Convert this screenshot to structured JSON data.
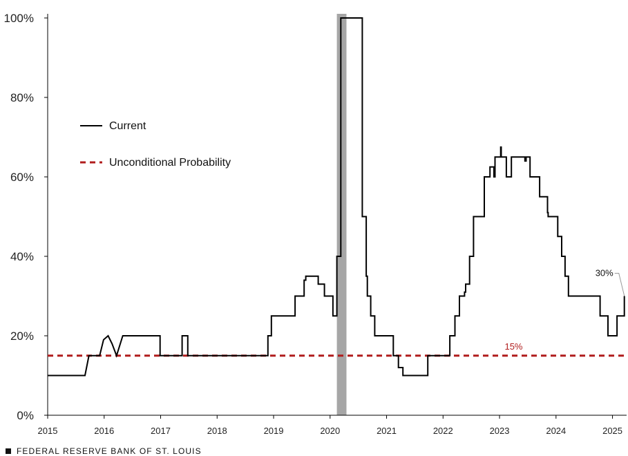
{
  "footer": {
    "text": "FEDERAL RESERVE BANK OF ST. LOUIS",
    "icon": "square-bullet-icon"
  },
  "chart_data": {
    "type": "line",
    "title": "",
    "xlabel": "",
    "ylabel": "",
    "xlim": [
      2015.0,
      2025.25
    ],
    "ylim": [
      0,
      100
    ],
    "x_ticks": [
      "2015",
      "2016",
      "2017",
      "2018",
      "2019",
      "2020",
      "2021",
      "2022",
      "2023",
      "2024",
      "2025"
    ],
    "y_ticks": [
      "0%",
      "20%",
      "40%",
      "60%",
      "80%",
      "100%"
    ],
    "grid": false,
    "legend": {
      "placement": "left",
      "entries": [
        "Current",
        "Unconditional Probability"
      ]
    },
    "recession_band": {
      "x_start": 2020.12,
      "x_end": 2020.29,
      "color": "#a6a6a6"
    },
    "series": [
      {
        "name": "Current",
        "color": "#000000",
        "style": "step",
        "points": [
          [
            2015.0,
            10
          ],
          [
            2015.66,
            10
          ],
          [
            2015.73,
            15
          ],
          [
            2015.92,
            15
          ],
          [
            2015.99,
            19
          ],
          [
            2016.07,
            20
          ],
          [
            2016.14,
            18
          ],
          [
            2016.22,
            15
          ],
          [
            2016.33,
            20
          ],
          [
            2016.99,
            20
          ],
          [
            2016.99,
            15
          ],
          [
            2017.38,
            15
          ],
          [
            2017.38,
            20
          ],
          [
            2017.48,
            20
          ],
          [
            2017.48,
            15
          ],
          [
            2018.9,
            15
          ],
          [
            2018.9,
            20
          ],
          [
            2018.96,
            20
          ],
          [
            2018.96,
            25
          ],
          [
            2019.38,
            25
          ],
          [
            2019.38,
            30
          ],
          [
            2019.54,
            30
          ],
          [
            2019.54,
            34
          ],
          [
            2019.57,
            34
          ],
          [
            2019.57,
            35
          ],
          [
            2019.79,
            35
          ],
          [
            2019.79,
            33
          ],
          [
            2019.9,
            33
          ],
          [
            2019.9,
            30
          ],
          [
            2020.05,
            30
          ],
          [
            2020.05,
            25
          ],
          [
            2020.12,
            25
          ],
          [
            2020.12,
            40
          ],
          [
            2020.19,
            40
          ],
          [
            2020.19,
            100
          ],
          [
            2020.57,
            100
          ],
          [
            2020.57,
            50
          ],
          [
            2020.64,
            50
          ],
          [
            2020.64,
            35
          ],
          [
            2020.66,
            35
          ],
          [
            2020.66,
            30
          ],
          [
            2020.72,
            30
          ],
          [
            2020.72,
            25
          ],
          [
            2020.79,
            25
          ],
          [
            2020.79,
            20
          ],
          [
            2021.12,
            20
          ],
          [
            2021.12,
            15
          ],
          [
            2021.21,
            15
          ],
          [
            2021.21,
            12
          ],
          [
            2021.29,
            12
          ],
          [
            2021.29,
            10
          ],
          [
            2021.73,
            10
          ],
          [
            2021.73,
            15
          ],
          [
            2022.12,
            15
          ],
          [
            2022.12,
            20
          ],
          [
            2022.21,
            20
          ],
          [
            2022.21,
            25
          ],
          [
            2022.29,
            25
          ],
          [
            2022.29,
            30
          ],
          [
            2022.38,
            30
          ],
          [
            2022.38,
            31
          ],
          [
            2022.4,
            31
          ],
          [
            2022.4,
            33
          ],
          [
            2022.47,
            33
          ],
          [
            2022.47,
            40
          ],
          [
            2022.54,
            40
          ],
          [
            2022.54,
            50
          ],
          [
            2022.73,
            50
          ],
          [
            2022.73,
            60
          ],
          [
            2022.83,
            60
          ],
          [
            2022.83,
            62.5
          ],
          [
            2022.9,
            62.5
          ],
          [
            2022.9,
            60
          ],
          [
            2022.92,
            60
          ],
          [
            2022.92,
            65
          ],
          [
            2023.02,
            65
          ],
          [
            2023.02,
            67.5
          ],
          [
            2023.03,
            67.5
          ],
          [
            2023.03,
            65
          ],
          [
            2023.12,
            65
          ],
          [
            2023.12,
            60
          ],
          [
            2023.21,
            60
          ],
          [
            2023.21,
            65
          ],
          [
            2023.45,
            65
          ],
          [
            2023.45,
            64
          ],
          [
            2023.47,
            64
          ],
          [
            2023.47,
            65
          ],
          [
            2023.54,
            65
          ],
          [
            2023.54,
            60
          ],
          [
            2023.71,
            60
          ],
          [
            2023.71,
            55
          ],
          [
            2023.85,
            55
          ],
          [
            2023.85,
            51
          ],
          [
            2023.86,
            51
          ],
          [
            2023.86,
            50
          ],
          [
            2024.03,
            50
          ],
          [
            2024.03,
            45
          ],
          [
            2024.1,
            45
          ],
          [
            2024.1,
            40
          ],
          [
            2024.16,
            40
          ],
          [
            2024.16,
            35
          ],
          [
            2024.22,
            35
          ],
          [
            2024.22,
            30
          ],
          [
            2024.78,
            30
          ],
          [
            2024.78,
            25
          ],
          [
            2024.92,
            25
          ],
          [
            2024.92,
            20
          ],
          [
            2025.08,
            20
          ],
          [
            2025.08,
            25
          ],
          [
            2025.21,
            25
          ],
          [
            2025.21,
            30
          ]
        ]
      },
      {
        "name": "Unconditional Probability",
        "color": "#b01c1c",
        "style": "dashed",
        "value": 15
      }
    ],
    "annotations": [
      {
        "text": "30%",
        "x": 2025.21,
        "y": 30,
        "color": "#111111"
      },
      {
        "text": "15%",
        "x": 2023.25,
        "y": 15,
        "color": "#b01c1c"
      }
    ]
  }
}
